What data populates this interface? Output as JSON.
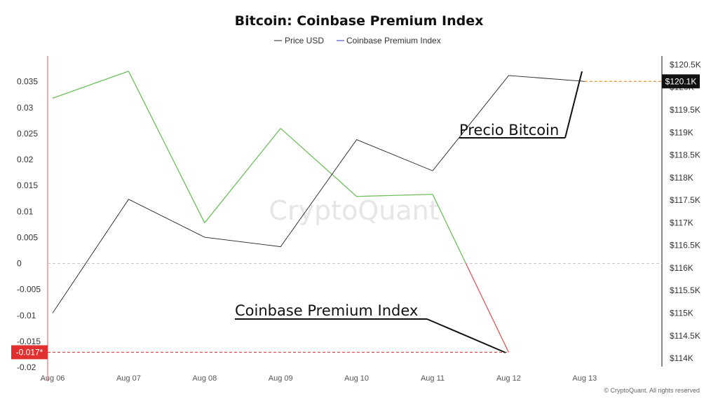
{
  "chart_data": {
    "type": "line",
    "title": "Bitcoin: Coinbase Premium Index",
    "categories": [
      "Aug 06",
      "Aug 07",
      "Aug 08",
      "Aug 09",
      "Aug 10",
      "Aug 11",
      "Aug 12",
      "Aug 13"
    ],
    "left_axis": {
      "range": [
        -0.02,
        0.04
      ],
      "ticks": [
        "0.035",
        "0.03",
        "0.025",
        "0.02",
        "0.015",
        "0.01",
        "0.005",
        "0",
        "-0.005",
        "-0.01",
        "-0.015",
        "-0.02"
      ],
      "tick_values": [
        0.035,
        0.03,
        0.025,
        0.02,
        0.015,
        0.01,
        0.005,
        0,
        -0.005,
        -0.01,
        -0.015,
        -0.02
      ]
    },
    "right_axis": {
      "range": [
        113800,
        120700
      ],
      "ticks": [
        "$120.5K",
        "$120K",
        "$119.5K",
        "$119K",
        "$118.5K",
        "$118K",
        "$117.5K",
        "$117K",
        "$116.5K",
        "$116K",
        "$115.5K",
        "$115K",
        "$114.5K",
        "$114K"
      ],
      "tick_values": [
        120500,
        120000,
        119500,
        119000,
        118500,
        118000,
        117500,
        117000,
        116500,
        116000,
        115500,
        115000,
        114500,
        114000
      ]
    },
    "series": [
      {
        "name": "Price USD",
        "axis": "right",
        "color": "#222222",
        "values": [
          115000,
          117520,
          116680,
          116470,
          118840,
          118150,
          120260,
          120130
        ]
      },
      {
        "name": "Coinbase Premium Index",
        "axis": "left",
        "color": "#6cbf5a",
        "negative_color": "#e05a5a",
        "legend_color": "#3333cc",
        "values": [
          0.0318,
          0.037,
          0.0078,
          0.026,
          0.0129,
          0.0133,
          -0.0171,
          null
        ]
      }
    ],
    "last_price_label": "$120.1K",
    "last_index_label": "-0.017*",
    "zero_line": true,
    "legend_position": "top-center"
  },
  "annotations": {
    "price": "Precio Bitcoin",
    "index": "Coinbase Premium Index"
  },
  "watermark": "CryptoQuant",
  "copyright": "© CryptoQuant. All rights reserved",
  "colors": {
    "left_axis_line": "#e05a5a",
    "price_badge": "#111111",
    "index_badge": "#e03030",
    "price_guide": "#e08a1a",
    "index_guide": "#e03030"
  }
}
